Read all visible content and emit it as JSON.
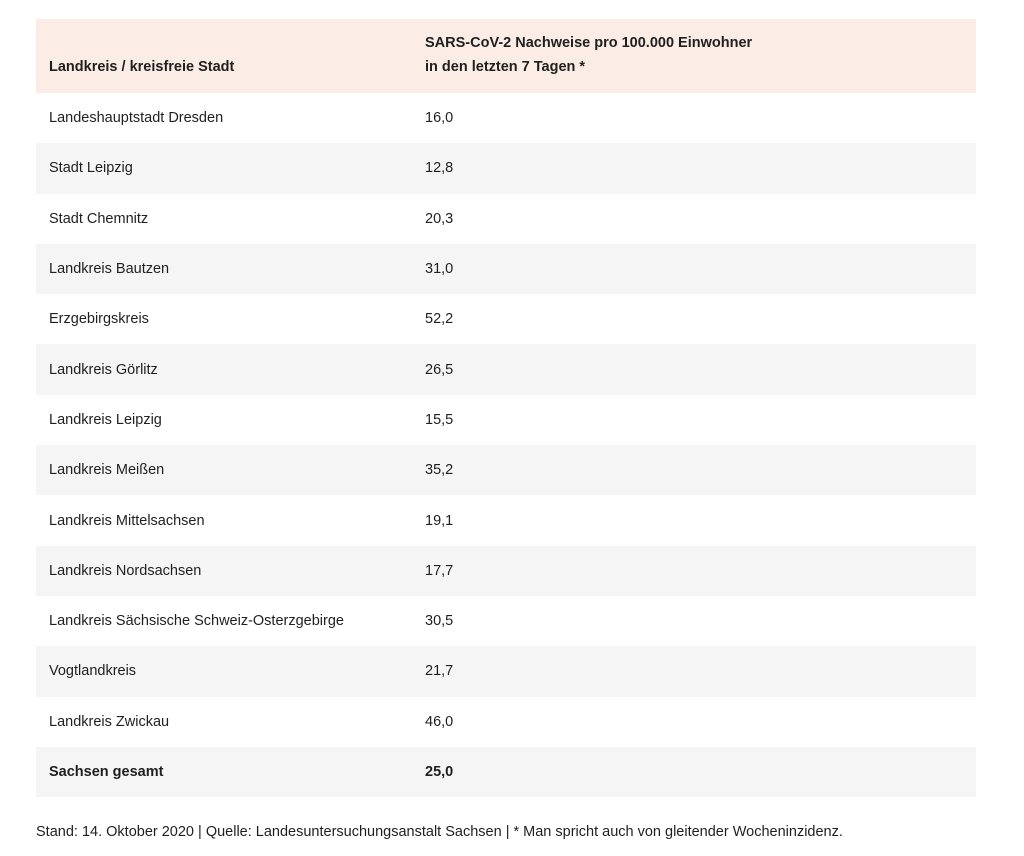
{
  "table": {
    "headers": {
      "col1": "Landkreis / kreisfreie Stadt",
      "col2_line1": "SARS-CoV-2 Nachweise pro 100.000 Einwohner",
      "col2_line2": "in den letzten 7 Tagen *"
    },
    "rows": [
      {
        "name": "Landeshauptstadt Dresden",
        "value": "16,0"
      },
      {
        "name": "Stadt Leipzig",
        "value": "12,8"
      },
      {
        "name": "Stadt Chemnitz",
        "value": "20,3"
      },
      {
        "name": "Landkreis Bautzen",
        "value": "31,0"
      },
      {
        "name": "Erzgebirgskreis",
        "value": "52,2"
      },
      {
        "name": "Landkreis Görlitz",
        "value": "26,5"
      },
      {
        "name": "Landkreis Leipzig",
        "value": "15,5"
      },
      {
        "name": "Landkreis Meißen",
        "value": "35,2"
      },
      {
        "name": "Landkreis Mittelsachsen",
        "value": "19,1"
      },
      {
        "name": "Landkreis Nordsachsen",
        "value": "17,7"
      },
      {
        "name": "Landkreis Sächsische Schweiz-Osterzgebirge",
        "value": "30,5"
      },
      {
        "name": "Vogtlandkreis",
        "value": "21,7"
      },
      {
        "name": "Landkreis Zwickau",
        "value": "46,0"
      }
    ],
    "total": {
      "name": "Sachsen gesamt",
      "value": "25,0"
    }
  },
  "footnote": "Stand: 14. Oktober 2020 | Quelle: Landesuntersuchungsanstalt Sachsen | * Man spricht auch von gleitender Wocheninzidenz.",
  "colors": {
    "header_bg": "#fbece5",
    "stripe_bg": "#f5f5f5",
    "text": "#1f1f1f"
  }
}
